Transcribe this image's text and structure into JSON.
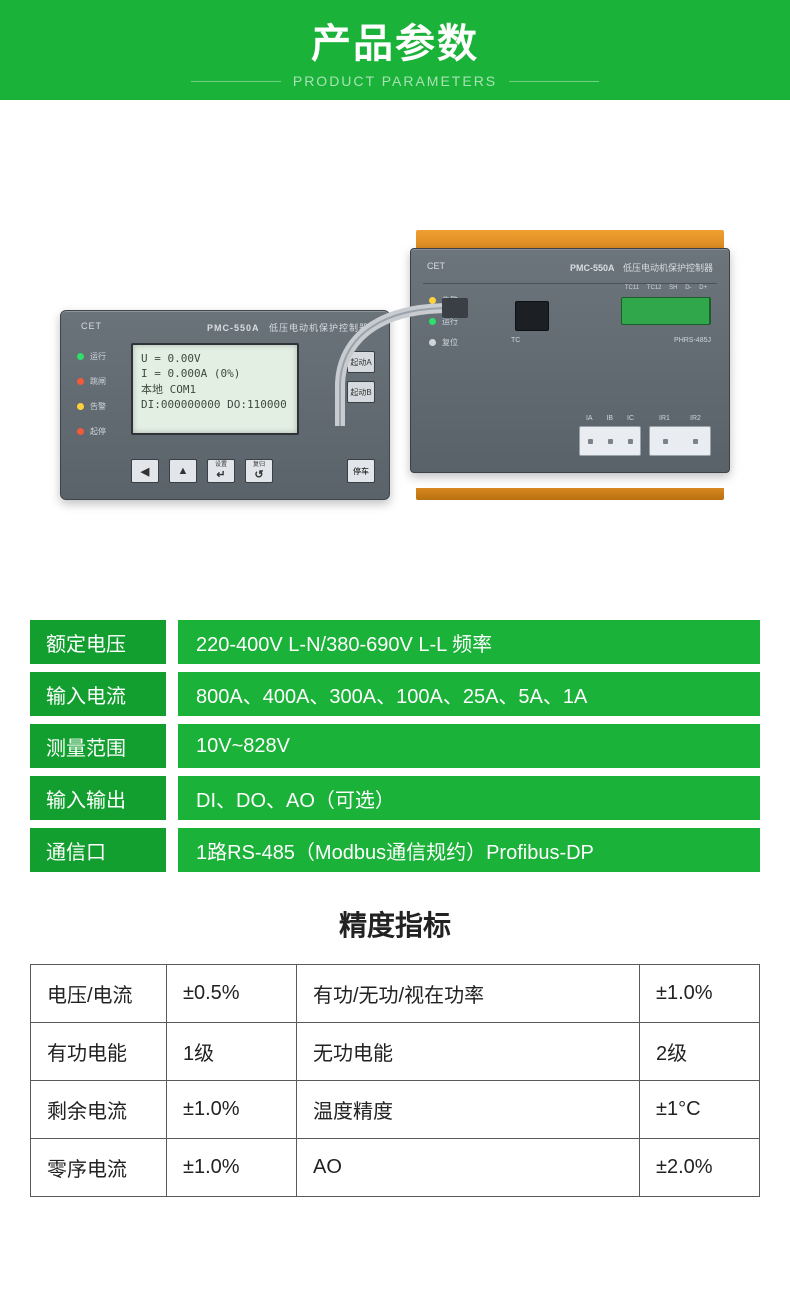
{
  "header": {
    "title_cn": "产品参数",
    "title_en": "PRODUCT PARAMETERS",
    "bg": "#1ab238",
    "sub_color": "#a8e2b4",
    "line_color": "#6fcf83"
  },
  "device": {
    "brand": "CET",
    "model": "PMC-550A",
    "subtitle": "低压电动机保护控制器",
    "display_panel": {
      "leds": [
        {
          "label": "运行",
          "color": "#2ee06a"
        },
        {
          "label": "跳闸",
          "color": "#f25a3a"
        },
        {
          "label": "告警",
          "color": "#ffd23a"
        },
        {
          "label": "起停",
          "color": "#f25a3a"
        }
      ],
      "lcd_lines": [
        "U =      0.00V",
        "I =   0.000A (0%)",
        "本地        COM1",
        "DI:000000000 DO:110000"
      ],
      "side_buttons": [
        "起动A",
        "起动B"
      ],
      "bottom_buttons": [
        {
          "glyph": "◀",
          "label": ""
        },
        {
          "glyph": "▲",
          "label": ""
        },
        {
          "glyph": "↵",
          "label": "设置"
        },
        {
          "glyph": "↺",
          "label": "复归"
        }
      ],
      "stop_button": "停车"
    },
    "main_unit": {
      "leds": [
        {
          "label": "告警",
          "color": "#ffd23a"
        },
        {
          "label": "运行",
          "color": "#2ee06a"
        },
        {
          "label": "复位",
          "color": "#d0d5da"
        }
      ],
      "term_labels": [
        "TC11",
        "TC12",
        "SH",
        "D-",
        "D+"
      ],
      "port_row": [
        "TC",
        "PHRS-485J"
      ],
      "conn1_labels": [
        "IA",
        "IB",
        "IC"
      ],
      "conn2_labels": [
        "IR1",
        "IR2"
      ]
    }
  },
  "specs": {
    "label_bg": "#129f2f",
    "value_bg": "#1ab238",
    "text_color": "#ffffff",
    "rows": [
      {
        "label": "额定电压",
        "value": "220-400V L-N/380-690V L-L 频率"
      },
      {
        "label": "输入电流",
        "value": "800A、400A、300A、100A、25A、5A、1A"
      },
      {
        "label": "测量范围",
        "value": "10V~828V"
      },
      {
        "label": "输入输出",
        "value": "DI、DO、AO（可选）"
      },
      {
        "label": "通信口",
        "value": "1路RS-485（Modbus通信规约）Profibus-DP"
      }
    ]
  },
  "accuracy": {
    "title": "精度指标",
    "border_color": "#5a5a5a",
    "rows": [
      [
        "电压/电流",
        "±0.5%",
        "有功/无功/视在功率",
        "±1.0%"
      ],
      [
        "有功电能",
        "1级",
        "无功电能",
        "2级"
      ],
      [
        "剩余电流",
        "±1.0%",
        "温度精度",
        "±1°C"
      ],
      [
        "零序电流",
        "±1.0%",
        "AO",
        "±2.0%"
      ]
    ]
  }
}
